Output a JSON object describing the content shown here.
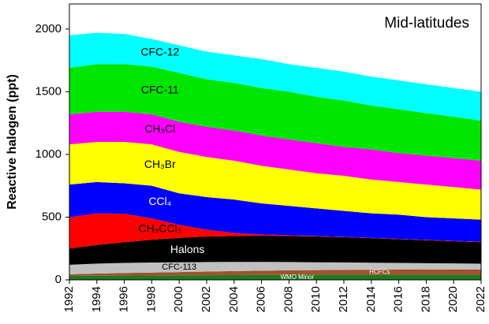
{
  "chart_data": {
    "type": "stacked_area",
    "ylabel": "Reactive halogen (ppt)",
    "annotation": "Mid-latitudes",
    "x": [
      1992,
      1994,
      1996,
      1998,
      2000,
      2002,
      2004,
      2006,
      2008,
      2010,
      2012,
      2014,
      2016,
      2018,
      2020,
      2022
    ],
    "xlim": [
      1992,
      2022
    ],
    "xticks": [
      1992,
      1994,
      1996,
      1998,
      2000,
      2002,
      2004,
      2006,
      2008,
      2010,
      2012,
      2014,
      2016,
      2018,
      2020,
      2022
    ],
    "ylim": [
      0,
      2200
    ],
    "yticks": [
      0,
      500,
      1000,
      1500,
      2000
    ],
    "series": [
      {
        "name": "WMO Minor",
        "color": "#1e7a1e",
        "label_color": "#ffffff",
        "values": [
          32,
          33,
          34,
          35,
          36,
          37,
          38,
          39,
          40,
          40,
          40,
          40,
          40,
          40,
          40,
          40
        ]
      },
      {
        "name": "HCFCs",
        "color": "#a0522d",
        "label_color": "#ffffff",
        "values": [
          13,
          17,
          21,
          23,
          26,
          29,
          32,
          34,
          36,
          38,
          40,
          41,
          42,
          42,
          42,
          42
        ]
      },
      {
        "name": "CFC-113",
        "color": "#c0c0c0",
        "label_color": "#000000",
        "values": [
          75,
          80,
          80,
          80,
          78,
          76,
          73,
          70,
          66,
          62,
          59,
          56,
          53,
          51,
          49,
          47
        ]
      },
      {
        "name": "Halons",
        "color": "#000000",
        "label_color": "#ffffff",
        "values": [
          130,
          148,
          165,
          182,
          195,
          203,
          207,
          209,
          208,
          206,
          201,
          195,
          189,
          183,
          177,
          171
        ]
      },
      {
        "name": "CH₃CCl₃",
        "color": "#ff0000",
        "label_color": "#000000",
        "values": [
          250,
          252,
          228,
          170,
          105,
          55,
          25,
          10,
          6,
          4,
          3,
          3,
          3,
          3,
          3,
          3
        ]
      },
      {
        "name": "CCl₄",
        "color": "#0000ff",
        "label_color": "#ffffff",
        "values": [
          260,
          250,
          242,
          260,
          250,
          260,
          265,
          248,
          234,
          220,
          207,
          195,
          193,
          181,
          179,
          177
        ]
      },
      {
        "name": "CH₃Br",
        "color": "#ffff00",
        "label_color": "#000000",
        "values": [
          320,
          320,
          330,
          330,
          330,
          320,
          310,
          300,
          290,
          280,
          280,
          270,
          260,
          260,
          250,
          240
        ]
      },
      {
        "name": "CH₃Cl",
        "color": "#ff00ff",
        "label_color": "#000000",
        "values": [
          240,
          240,
          240,
          240,
          240,
          240,
          240,
          240,
          240,
          240,
          230,
          240,
          230,
          230,
          230,
          230
        ]
      },
      {
        "name": "CFC-11",
        "color": "#00e600",
        "label_color": "#000000",
        "values": [
          370,
          380,
          380,
          380,
          390,
          380,
          380,
          380,
          380,
          370,
          370,
          350,
          350,
          340,
          330,
          320
        ]
      },
      {
        "name": "CFC-12",
        "color": "#00ffff",
        "label_color": "#000000",
        "values": [
          260,
          250,
          240,
          220,
          220,
          220,
          220,
          230,
          220,
          230,
          230,
          230,
          230,
          230,
          230,
          230
        ]
      }
    ]
  }
}
